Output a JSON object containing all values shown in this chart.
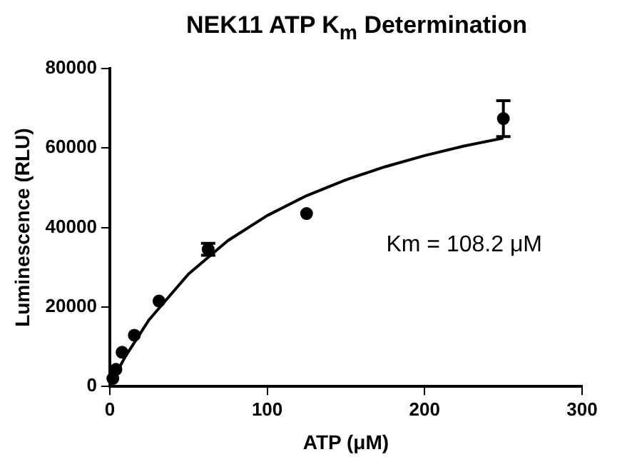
{
  "chart_data": {
    "type": "scatter",
    "title": "NEK11 ATP K$_{m}$ Determination",
    "xlabel": "ATP (μM)",
    "ylabel": "Luminescence (RLU)",
    "xlim": [
      0,
      300
    ],
    "xticks": [
      0,
      100,
      200,
      300
    ],
    "ylim": [
      0,
      80000
    ],
    "yticks": [
      0,
      20000,
      40000,
      60000,
      80000
    ],
    "grid": false,
    "legend": false,
    "marker": "circle",
    "annotations": [
      "Km = 108.2 μM"
    ],
    "series": [
      {
        "type": "scatter",
        "color": "#000000",
        "x": [
          1.95,
          3.9,
          7.8,
          15.6,
          31.25,
          62.5,
          125,
          250
        ],
        "values": [
          2000,
          4300,
          8600,
          12900,
          21500,
          34500,
          43500,
          67400
        ],
        "errors": [
          null,
          null,
          null,
          null,
          null,
          1500,
          null,
          4500
        ]
      },
      {
        "type": "line",
        "color": "#000000",
        "marker": "none",
        "x": [
          0,
          5,
          10,
          25,
          50,
          75,
          100,
          125,
          150,
          175,
          200,
          225,
          250
        ],
        "values": [
          0,
          4000,
          7600,
          16800,
          28300,
          36700,
          43000,
          48000,
          52000,
          55300,
          58100,
          60500,
          62500
        ]
      }
    ]
  }
}
